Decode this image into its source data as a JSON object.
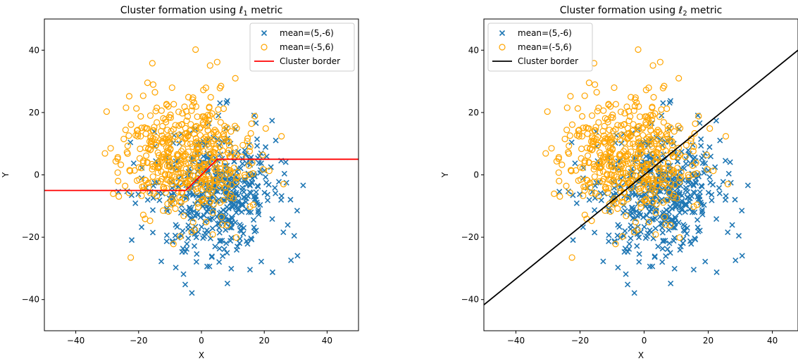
{
  "chart_data": [
    {
      "type": "scatter",
      "title_prefix": "Cluster formation using ℓ",
      "title_sub": "1",
      "title_suffix": " metric",
      "xlabel": "X",
      "ylabel": "Y",
      "xlim": [
        -50,
        50
      ],
      "ylim": [
        -50,
        50
      ],
      "xticks": [
        -40,
        -20,
        0,
        20,
        40
      ],
      "yticks": [
        -40,
        -20,
        0,
        20,
        40
      ],
      "tick_labels": [
        "−40",
        "−20",
        "0",
        "20",
        "40"
      ],
      "legend_position": "top-right",
      "series": [
        {
          "name": "mean=(5,-6)",
          "marker": "x",
          "color": "#1f77b4",
          "center": [
            5,
            -6
          ],
          "spread": 10
        },
        {
          "name": "mean=(-5,6)",
          "marker": "o",
          "color": "#ffa500",
          "center": [
            -5,
            6
          ],
          "spread": 10
        }
      ],
      "border": {
        "name": "Cluster border",
        "color": "#ff0000",
        "x": [
          -50,
          -5,
          5,
          50
        ],
        "y": [
          -5,
          -5,
          5,
          5
        ]
      }
    },
    {
      "type": "scatter",
      "title_prefix": "Cluster formation using ℓ",
      "title_sub": "2",
      "title_suffix": " metric",
      "xlabel": "X",
      "ylabel": "Y",
      "xlim": [
        -50,
        48
      ],
      "ylim": [
        -50,
        50
      ],
      "xticks": [
        -40,
        -20,
        0,
        20,
        40
      ],
      "yticks": [
        -40,
        -20,
        0,
        20,
        40
      ],
      "tick_labels": [
        "−40",
        "−20",
        "0",
        "20",
        "40"
      ],
      "legend_position": "top-left",
      "series": [
        {
          "name": "mean=(5,-6)",
          "marker": "x",
          "color": "#1f77b4",
          "center": [
            5,
            -6
          ],
          "spread": 10
        },
        {
          "name": "mean=(-5,6)",
          "marker": "o",
          "color": "#ffa500",
          "center": [
            -5,
            6
          ],
          "spread": 10
        }
      ],
      "border": {
        "name": "Cluster border",
        "color": "#000000",
        "x": [
          -50,
          48
        ],
        "y": [
          -41.7,
          40
        ]
      }
    }
  ]
}
